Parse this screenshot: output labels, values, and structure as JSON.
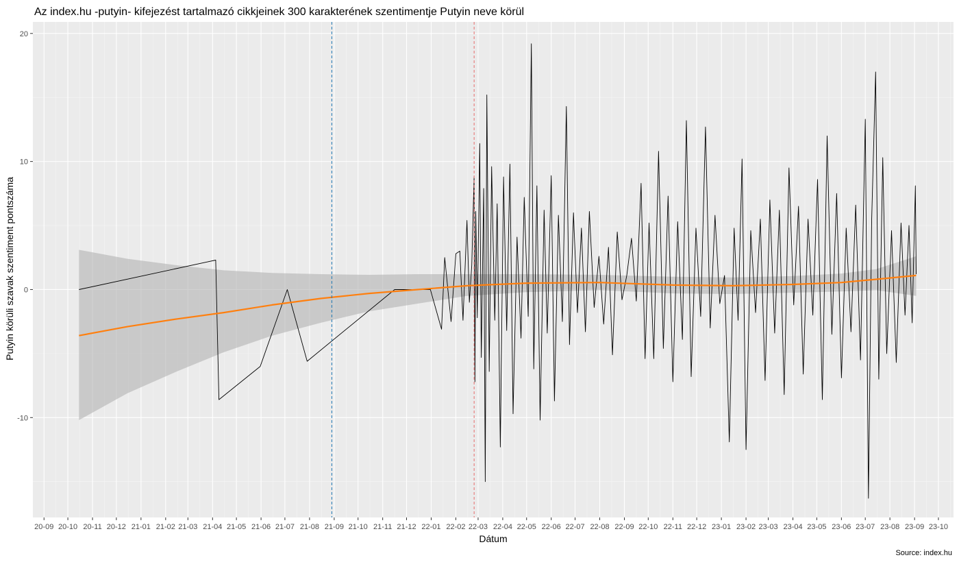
{
  "chart_data": {
    "type": "line",
    "title": "Az index.hu -putyin- kifejezést tartalmazó cikkjeinek 300 karakterének szentimentje Putyin neve körül",
    "xlabel": "Dátum",
    "ylabel": "Putyin körüli szavak szentiment pontszáma",
    "caption": "Source: index.hu",
    "x_type": "date",
    "xlim": [
      "2020-08-18",
      "2023-10-20"
    ],
    "ylim": [
      -17.8,
      20.9
    ],
    "grid": true,
    "x_tick_labels": [
      "20-09",
      "20-10",
      "20-11",
      "20-12",
      "21-01",
      "21-02",
      "21-03",
      "21-04",
      "21-05",
      "21-06",
      "21-07",
      "21-08",
      "21-09",
      "21-10",
      "21-11",
      "21-12",
      "22-01",
      "22-02",
      "22-03",
      "22-04",
      "22-05",
      "22-06",
      "22-07",
      "22-08",
      "22-09",
      "22-10",
      "22-11",
      "22-12",
      "23-01",
      "23-02",
      "23-03",
      "23-04",
      "23-05",
      "23-06",
      "23-07",
      "23-08",
      "23-09",
      "23-10"
    ],
    "x_tick_dates": [
      "2020-09-01",
      "2020-10-01",
      "2020-11-01",
      "2020-12-01",
      "2021-01-01",
      "2021-02-01",
      "2021-03-01",
      "2021-04-01",
      "2021-05-01",
      "2021-06-01",
      "2021-07-01",
      "2021-08-01",
      "2021-09-01",
      "2021-10-01",
      "2021-11-01",
      "2021-12-01",
      "2022-01-01",
      "2022-02-01",
      "2022-03-01",
      "2022-04-01",
      "2022-05-01",
      "2022-06-01",
      "2022-07-01",
      "2022-08-01",
      "2022-09-01",
      "2022-10-01",
      "2022-11-01",
      "2022-12-01",
      "2023-01-01",
      "2023-02-01",
      "2023-03-01",
      "2023-04-01",
      "2023-05-01",
      "2023-06-01",
      "2023-07-01",
      "2023-08-01",
      "2023-09-01",
      "2023-10-01"
    ],
    "y_ticks": [
      -10,
      0,
      10,
      20
    ],
    "y_tick_labels": [
      "-10",
      "0",
      "10",
      "20"
    ],
    "vlines": [
      {
        "x": "2021-08-29",
        "color": "#1f77b4"
      },
      {
        "x": "2022-02-24",
        "color": "#e66b6b"
      }
    ],
    "series": [
      {
        "color": "#000000",
        "points": [
          [
            "2020-10-15",
            0
          ],
          [
            "2021-04-05",
            2.3
          ],
          [
            "2021-04-09",
            -8.6
          ],
          [
            "2021-05-31",
            -6.0
          ],
          [
            "2021-07-04",
            0
          ],
          [
            "2021-07-29",
            -5.6
          ],
          [
            "2021-11-16",
            0
          ],
          [
            "2021-12-31",
            0
          ],
          [
            "2022-01-14",
            -3.1
          ],
          [
            "2022-01-18",
            2.5
          ],
          [
            "2022-01-26",
            -2.5
          ],
          [
            "2022-02-01",
            2.8
          ],
          [
            "2022-02-06",
            3.0
          ],
          [
            "2022-02-10",
            -2.4
          ],
          [
            "2022-02-15",
            5.4
          ],
          [
            "2022-02-18",
            -1.0
          ],
          [
            "2022-02-21",
            1.9
          ],
          [
            "2022-02-24",
            8.8
          ],
          [
            "2022-02-25",
            -7.2
          ],
          [
            "2022-02-26",
            6.1
          ],
          [
            "2022-02-28",
            -2.2
          ],
          [
            "2022-03-03",
            11.4
          ],
          [
            "2022-03-05",
            -5.3
          ],
          [
            "2022-03-08",
            7.9
          ],
          [
            "2022-03-10",
            -15.0
          ],
          [
            "2022-03-12",
            15.2
          ],
          [
            "2022-03-15",
            -6.4
          ],
          [
            "2022-03-18",
            9.6
          ],
          [
            "2022-03-22",
            -2.4
          ],
          [
            "2022-03-25",
            6.7
          ],
          [
            "2022-03-29",
            -12.3
          ],
          [
            "2022-04-02",
            8.8
          ],
          [
            "2022-04-06",
            -3.2
          ],
          [
            "2022-04-10",
            9.8
          ],
          [
            "2022-04-14",
            -9.7
          ],
          [
            "2022-04-19",
            4.1
          ],
          [
            "2022-04-24",
            -3.8
          ],
          [
            "2022-04-28",
            7.2
          ],
          [
            "2022-05-03",
            -2.1
          ],
          [
            "2022-05-07",
            19.2
          ],
          [
            "2022-05-10",
            -6.2
          ],
          [
            "2022-05-14",
            8.1
          ],
          [
            "2022-05-18",
            -10.2
          ],
          [
            "2022-05-23",
            6.2
          ],
          [
            "2022-05-27",
            -3.4
          ],
          [
            "2022-06-01",
            8.9
          ],
          [
            "2022-06-05",
            -8.7
          ],
          [
            "2022-06-10",
            5.8
          ],
          [
            "2022-06-15",
            -2.5
          ],
          [
            "2022-06-20",
            14.3
          ],
          [
            "2022-06-24",
            -4.3
          ],
          [
            "2022-06-29",
            6.0
          ],
          [
            "2022-07-04",
            -1.8
          ],
          [
            "2022-07-09",
            4.8
          ],
          [
            "2022-07-14",
            -3.3
          ],
          [
            "2022-07-19",
            6.1
          ],
          [
            "2022-07-25",
            -1.4
          ],
          [
            "2022-07-31",
            2.6
          ],
          [
            "2022-08-06",
            -2.7
          ],
          [
            "2022-08-12",
            3.3
          ],
          [
            "2022-08-17",
            -5.1
          ],
          [
            "2022-08-23",
            4.5
          ],
          [
            "2022-08-29",
            -0.8
          ],
          [
            "2022-09-04",
            1.1
          ],
          [
            "2022-09-10",
            4.0
          ],
          [
            "2022-09-16",
            -0.9
          ],
          [
            "2022-09-22",
            8.3
          ],
          [
            "2022-09-27",
            -5.4
          ],
          [
            "2022-10-02",
            5.2
          ],
          [
            "2022-10-08",
            -5.4
          ],
          [
            "2022-10-14",
            10.8
          ],
          [
            "2022-10-20",
            -4.6
          ],
          [
            "2022-10-26",
            7.3
          ],
          [
            "2022-11-01",
            -7.2
          ],
          [
            "2022-11-07",
            5.3
          ],
          [
            "2022-11-13",
            -3.9
          ],
          [
            "2022-11-18",
            13.2
          ],
          [
            "2022-11-24",
            -6.8
          ],
          [
            "2022-11-30",
            4.8
          ],
          [
            "2022-12-06",
            -2.1
          ],
          [
            "2022-12-12",
            12.7
          ],
          [
            "2022-12-18",
            -3.0
          ],
          [
            "2022-12-24",
            5.8
          ],
          [
            "2022-12-30",
            -1.1
          ],
          [
            "2023-01-05",
            1.1
          ],
          [
            "2023-01-11",
            -11.9
          ],
          [
            "2023-01-17",
            4.8
          ],
          [
            "2023-01-22",
            -2.4
          ],
          [
            "2023-01-27",
            10.2
          ],
          [
            "2023-02-01",
            -12.5
          ],
          [
            "2023-02-07",
            4.6
          ],
          [
            "2023-02-13",
            -1.8
          ],
          [
            "2023-02-19",
            5.5
          ],
          [
            "2023-02-25",
            -7.1
          ],
          [
            "2023-03-03",
            7.0
          ],
          [
            "2023-03-09",
            -3.4
          ],
          [
            "2023-03-15",
            6.2
          ],
          [
            "2023-03-21",
            -8.2
          ],
          [
            "2023-03-27",
            9.5
          ],
          [
            "2023-04-02",
            -1.2
          ],
          [
            "2023-04-08",
            6.5
          ],
          [
            "2023-04-14",
            -6.6
          ],
          [
            "2023-04-20",
            5.5
          ],
          [
            "2023-04-26",
            -2.0
          ],
          [
            "2023-05-02",
            8.6
          ],
          [
            "2023-05-08",
            -8.6
          ],
          [
            "2023-05-14",
            12.0
          ],
          [
            "2023-05-20",
            -3.5
          ],
          [
            "2023-05-26",
            7.5
          ],
          [
            "2023-06-01",
            -6.9
          ],
          [
            "2023-06-07",
            4.8
          ],
          [
            "2023-06-13",
            -3.3
          ],
          [
            "2023-06-19",
            6.6
          ],
          [
            "2023-06-25",
            -5.5
          ],
          [
            "2023-07-01",
            13.3
          ],
          [
            "2023-07-05",
            -16.3
          ],
          [
            "2023-07-09",
            5.4
          ],
          [
            "2023-07-14",
            17.0
          ],
          [
            "2023-07-18",
            -7.0
          ],
          [
            "2023-07-23",
            10.3
          ],
          [
            "2023-07-28",
            -5.0
          ],
          [
            "2023-08-03",
            4.6
          ],
          [
            "2023-08-09",
            -5.7
          ],
          [
            "2023-08-15",
            5.2
          ],
          [
            "2023-08-20",
            -2.0
          ],
          [
            "2023-08-25",
            5.0
          ],
          [
            "2023-08-29",
            -2.6
          ],
          [
            "2023-09-02",
            8.1
          ],
          [
            "2023-09-03",
            1.2
          ]
        ]
      },
      {
        "color": "#ff7f0e",
        "points": [
          [
            "2020-10-15",
            -3.6
          ],
          [
            "2020-12-15",
            -2.9
          ],
          [
            "2021-02-15",
            -2.3
          ],
          [
            "2021-04-15",
            -1.8
          ],
          [
            "2021-06-15",
            -1.2
          ],
          [
            "2021-08-15",
            -0.7
          ],
          [
            "2021-10-15",
            -0.3
          ],
          [
            "2021-12-15",
            0.0
          ],
          [
            "2022-02-15",
            0.3
          ],
          [
            "2022-05-01",
            0.5
          ],
          [
            "2022-08-01",
            0.55
          ],
          [
            "2022-11-01",
            0.35
          ],
          [
            "2023-01-15",
            0.3
          ],
          [
            "2023-04-01",
            0.4
          ],
          [
            "2023-06-01",
            0.55
          ],
          [
            "2023-07-15",
            0.8
          ],
          [
            "2023-09-03",
            1.1
          ]
        ]
      }
    ],
    "ribbon": {
      "color": "#b3b3b3",
      "points": [
        [
          "2020-10-15",
          -10.2,
          3.1
        ],
        [
          "2020-12-15",
          -8.1,
          2.4
        ],
        [
          "2021-02-15",
          -6.4,
          1.9
        ],
        [
          "2021-04-15",
          -4.9,
          1.5
        ],
        [
          "2021-06-15",
          -3.6,
          1.3
        ],
        [
          "2021-08-15",
          -2.6,
          1.2
        ],
        [
          "2021-10-15",
          -1.7,
          1.15
        ],
        [
          "2021-12-15",
          -1.1,
          1.2
        ],
        [
          "2022-02-15",
          -0.5,
          1.2
        ],
        [
          "2022-05-01",
          -0.2,
          1.2
        ],
        [
          "2022-08-01",
          -0.05,
          1.15
        ],
        [
          "2022-11-01",
          -0.3,
          1.0
        ],
        [
          "2023-01-15",
          -0.35,
          0.95
        ],
        [
          "2023-04-01",
          -0.25,
          1.05
        ],
        [
          "2023-06-01",
          -0.15,
          1.25
        ],
        [
          "2023-07-15",
          -0.05,
          1.6
        ],
        [
          "2023-09-03",
          -0.5,
          2.6
        ]
      ]
    }
  }
}
